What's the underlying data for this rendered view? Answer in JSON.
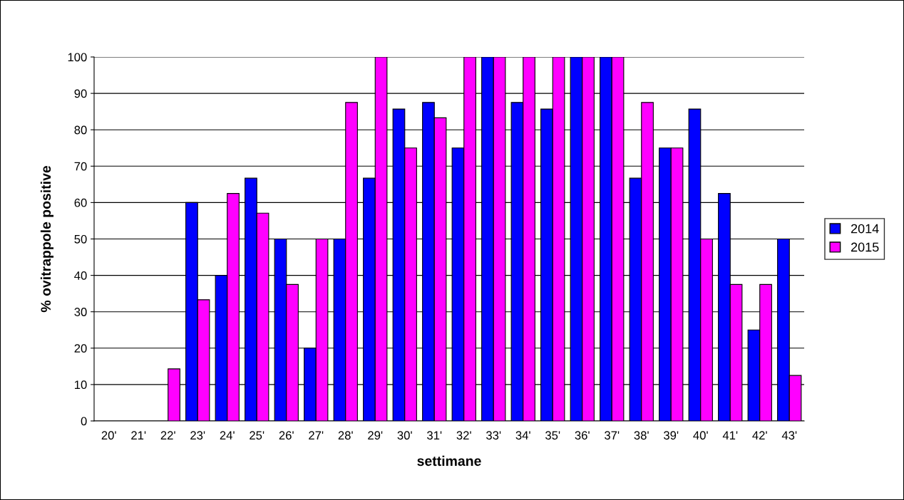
{
  "chart_data": {
    "type": "bar",
    "xlabel": "settimane",
    "ylabel": "% ovitrappole positive",
    "categories": [
      "20'",
      "21'",
      "22'",
      "23'",
      "24'",
      "25'",
      "26'",
      "27'",
      "28'",
      "29'",
      "30'",
      "31'",
      "32'",
      "33'",
      "34'",
      "35'",
      "36'",
      "37'",
      "38'",
      "39'",
      "40'",
      "41'",
      "42'",
      "43'"
    ],
    "series": [
      {
        "name": "2014",
        "color": "#0000ff",
        "values": [
          null,
          null,
          null,
          60,
          40,
          66.7,
          50,
          20,
          50,
          66.7,
          85.7,
          87.5,
          75,
          100,
          87.5,
          85.7,
          100,
          100,
          66.7,
          75,
          85.7,
          62.5,
          25,
          50
        ]
      },
      {
        "name": "2015",
        "color": "#ff00ff",
        "values": [
          null,
          null,
          14.3,
          33.3,
          62.5,
          57.1,
          37.5,
          50,
          87.5,
          100,
          75,
          83.3,
          100,
          100,
          100,
          100,
          100,
          100,
          87.5,
          75,
          50,
          37.5,
          37.5,
          12.5
        ]
      }
    ],
    "ylim": [
      0,
      100
    ],
    "yticks": [
      0,
      10,
      20,
      30,
      40,
      50,
      60,
      70,
      80,
      90,
      100
    ],
    "grid": "y",
    "legend": "right"
  }
}
